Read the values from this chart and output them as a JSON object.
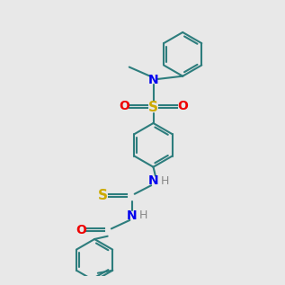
{
  "bg_color": "#e8e8e8",
  "bond_color": "#2d7d7d",
  "N_color": "#0000ee",
  "O_color": "#ee0000",
  "S_color": "#ccaa00",
  "H_color": "#888888",
  "lw": 1.5
}
